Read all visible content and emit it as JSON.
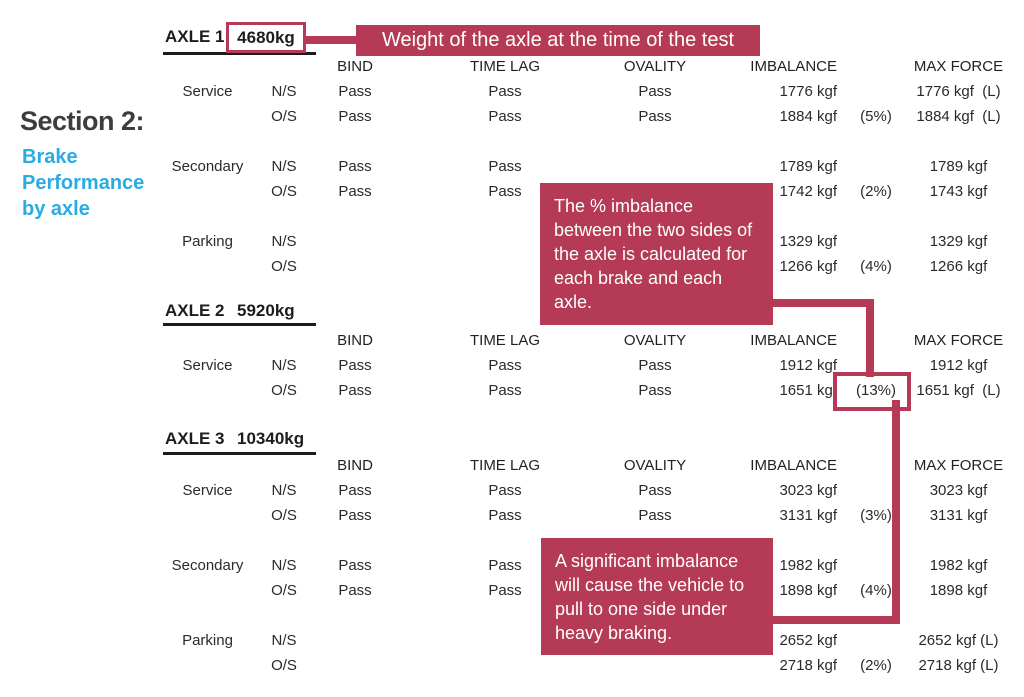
{
  "colors": {
    "accent": "#b53a55",
    "cyan": "#2aabe2",
    "text": "#2b2b2b",
    "heading": "#3d3d3d"
  },
  "section_label": {
    "title": "Section 2:",
    "subtitle_lines": [
      "Brake",
      "Performance",
      "by axle"
    ]
  },
  "callouts": {
    "weight": "Weight of the axle at the time of the test",
    "imbalance_calc": "The % imbalance between the two sides of the axle is calculated for each brake and each axle.",
    "imbalance_warning": "A significant imbalance will cause the vehicle to pull to one side under heavy braking."
  },
  "columns": [
    "BIND",
    "TIME LAG",
    "OVALITY",
    "IMBALANCE",
    "MAX FORCE"
  ],
  "highlighted_value": "(13%)",
  "axles": [
    {
      "name": "AXLE 1",
      "weight": "4680kg",
      "weight_boxed": true,
      "groups": [
        {
          "brake": "Service",
          "rows": [
            {
              "side": "N/S",
              "bind": "Pass",
              "time_lag": "Pass",
              "ovality": "Pass",
              "imbalance": "1776 kgf",
              "pct": "",
              "max_force": "1776 kgf  (L)"
            },
            {
              "side": "O/S",
              "bind": "Pass",
              "time_lag": "Pass",
              "ovality": "Pass",
              "imbalance": "1884 kgf",
              "pct": "(5%)",
              "max_force": "1884 kgf  (L)"
            }
          ]
        },
        {
          "brake": "Secondary",
          "rows": [
            {
              "side": "N/S",
              "bind": "Pass",
              "time_lag": "Pass",
              "ovality": "",
              "imbalance": "1789 kgf",
              "pct": "",
              "max_force": "1789 kgf"
            },
            {
              "side": "O/S",
              "bind": "Pass",
              "time_lag": "Pass",
              "ovality": "",
              "imbalance": "1742 kgf",
              "pct": "(2%)",
              "max_force": "1743 kgf"
            }
          ]
        },
        {
          "brake": "Parking",
          "rows": [
            {
              "side": "N/S",
              "bind": "",
              "time_lag": "",
              "ovality": "",
              "imbalance": "1329 kgf",
              "pct": "",
              "max_force": "1329 kgf"
            },
            {
              "side": "O/S",
              "bind": "",
              "time_lag": "",
              "ovality": "",
              "imbalance": "1266 kgf",
              "pct": "(4%)",
              "max_force": "1266 kgf"
            }
          ]
        }
      ]
    },
    {
      "name": "AXLE 2",
      "weight": "5920kg",
      "weight_boxed": false,
      "groups": [
        {
          "brake": "Service",
          "rows": [
            {
              "side": "N/S",
              "bind": "Pass",
              "time_lag": "Pass",
              "ovality": "Pass",
              "imbalance": "1912 kgf",
              "pct": "",
              "max_force": "1912 kgf"
            },
            {
              "side": "O/S",
              "bind": "Pass",
              "time_lag": "Pass",
              "ovality": "Pass",
              "imbalance": "1651 kgf",
              "pct": "(13%)",
              "max_force": "1651 kgf  (L)"
            }
          ]
        }
      ]
    },
    {
      "name": "AXLE 3",
      "weight": "10340kg",
      "weight_boxed": false,
      "groups": [
        {
          "brake": "Service",
          "rows": [
            {
              "side": "N/S",
              "bind": "Pass",
              "time_lag": "Pass",
              "ovality": "Pass",
              "imbalance": "3023 kgf",
              "pct": "",
              "max_force": "3023 kgf"
            },
            {
              "side": "O/S",
              "bind": "Pass",
              "time_lag": "Pass",
              "ovality": "Pass",
              "imbalance": "3131 kgf",
              "pct": "(3%)",
              "max_force": "3131 kgf"
            }
          ]
        },
        {
          "brake": "Secondary",
          "rows": [
            {
              "side": "N/S",
              "bind": "Pass",
              "time_lag": "Pass",
              "ovality": "",
              "imbalance": "1982 kgf",
              "pct": "",
              "max_force": "1982 kgf"
            },
            {
              "side": "O/S",
              "bind": "Pass",
              "time_lag": "Pass",
              "ovality": "",
              "imbalance": "1898 kgf",
              "pct": "(4%)",
              "max_force": "1898 kgf"
            }
          ]
        },
        {
          "brake": "Parking",
          "rows": [
            {
              "side": "N/S",
              "bind": "",
              "time_lag": "",
              "ovality": "",
              "imbalance": "2652 kgf",
              "pct": "",
              "max_force": "2652 kgf (L)"
            },
            {
              "side": "O/S",
              "bind": "",
              "time_lag": "",
              "ovality": "",
              "imbalance": "2718 kgf",
              "pct": "(2%)",
              "max_force": "2718 kgf (L)"
            }
          ]
        }
      ]
    }
  ]
}
